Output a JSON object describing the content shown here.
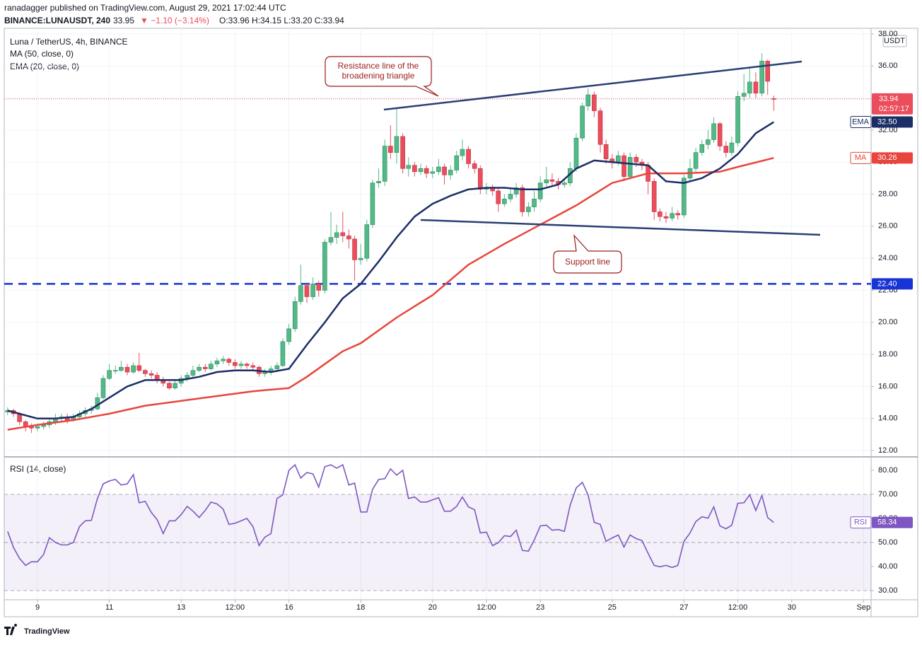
{
  "header": {
    "byline": "ranadagger published on TradingView.com, August 29, 2021 17:02:44 UTC",
    "symbol": "BINANCE:LUNAUSDT, 240",
    "last": "33.95",
    "change": "▼ −1.10 (−3.14%)",
    "ohlc": "O:33.96 H:34.15 L:33.20 C:33.94",
    "footer": "TradingView"
  },
  "chart_data": {
    "type": "candlestick",
    "title": "Luna / TetherUS, 4h, BINANCE",
    "unit": "USDT",
    "up_color": "#53b987",
    "down_color": "#eb4d5c",
    "grid": true,
    "x": [
      8.17,
      8.33,
      8.5,
      8.67,
      8.83,
      9,
      9.17,
      9.33,
      9.5,
      9.67,
      9.83,
      10,
      10.17,
      10.33,
      10.5,
      10.67,
      10.83,
      11,
      11.17,
      11.33,
      11.5,
      11.67,
      11.83,
      12,
      12.17,
      12.33,
      12.5,
      12.67,
      12.83,
      13,
      13.17,
      13.33,
      13.5,
      13.67,
      13.83,
      14,
      14.17,
      14.33,
      14.5,
      14.67,
      14.83,
      15,
      15.17,
      15.33,
      15.5,
      15.67,
      15.83,
      16,
      16.17,
      16.33,
      16.5,
      16.67,
      16.83,
      17,
      17.17,
      17.33,
      17.5,
      17.67,
      17.83,
      18,
      18.17,
      18.33,
      18.5,
      18.67,
      18.83,
      19,
      19.17,
      19.33,
      19.5,
      19.67,
      19.83,
      20,
      20.17,
      20.33,
      20.5,
      20.67,
      20.83,
      21,
      21.17,
      21.33,
      21.5,
      21.67,
      21.83,
      22,
      22.17,
      22.33,
      22.5,
      22.67,
      22.83,
      23,
      23.17,
      23.33,
      23.5,
      23.67,
      23.83,
      24,
      24.17,
      24.33,
      24.5,
      24.67,
      24.83,
      25,
      25.17,
      25.33,
      25.5,
      25.67,
      25.83,
      26,
      26.17,
      26.33,
      26.5,
      26.67,
      26.83,
      27,
      27.17,
      27.33,
      27.5,
      27.67,
      27.83,
      28,
      28.17,
      28.33,
      28.5,
      28.67,
      28.83,
      29,
      29.17,
      29.33,
      29.5
    ],
    "open": [
      14.4,
      14.5,
      14.3,
      13.8,
      13.5,
      13.4,
      13.5,
      13.6,
      13.8,
      14.0,
      14.1,
      13.9,
      14.1,
      14.3,
      14.5,
      14.6,
      15.3,
      16.5,
      17.0,
      17.0,
      17.2,
      16.9,
      17.3,
      17.0,
      16.8,
      16.7,
      16.4,
      16.2,
      15.9,
      16.2,
      16.5,
      16.7,
      17.0,
      17.2,
      17.1,
      17.4,
      17.6,
      17.7,
      17.5,
      17.3,
      17.4,
      17.3,
      17.2,
      16.8,
      16.9,
      17.1,
      17.3,
      18.8,
      19.6,
      21.3,
      22.3,
      21.6,
      22.4,
      22.0,
      25.0,
      25.3,
      25.6,
      25.4,
      25.2,
      23.9,
      24.0,
      26.1,
      28.7,
      28.8,
      31.0,
      30.6,
      31.6,
      29.6,
      29.8,
      29.4,
      29.6,
      29.3,
      29.4,
      29.7,
      29.2,
      29.5,
      30.4,
      30.8,
      29.9,
      29.6,
      28.3,
      28.4,
      28.2,
      27.4,
      27.7,
      28.0,
      28.4,
      26.9,
      27.2,
      27.7,
      28.7,
      28.9,
      28.8,
      28.6,
      28.7,
      29.6,
      31.5,
      33.5,
      34.2,
      33.2,
      31.1,
      30.2,
      30.0,
      30.4,
      29.1,
      30.3,
      30.0,
      29.8,
      28.8,
      26.9,
      26.6,
      26.5,
      26.8,
      26.7,
      29.0,
      29.6,
      30.6,
      31.1,
      31.4,
      32.4,
      31.0,
      30.6,
      31.2,
      34.1,
      34.3,
      35.0,
      34.3,
      36.3,
      33.96
    ],
    "high": [
      14.7,
      14.6,
      14.4,
      13.9,
      13.7,
      13.7,
      13.8,
      14.0,
      14.3,
      14.3,
      14.3,
      14.3,
      14.5,
      14.7,
      14.8,
      15.6,
      16.7,
      17.4,
      17.3,
      17.6,
      17.4,
      17.5,
      18.1,
      17.1,
      17.0,
      16.9,
      16.6,
      16.3,
      16.4,
      16.7,
      16.9,
      17.3,
      17.4,
      17.4,
      17.6,
      17.8,
      17.9,
      17.8,
      17.7,
      17.6,
      17.5,
      17.5,
      17.3,
      17.1,
      17.3,
      17.5,
      19.0,
      19.9,
      21.6,
      23.6,
      22.5,
      22.8,
      22.6,
      25.2,
      26.9,
      26.1,
      26.9,
      25.8,
      25.4,
      24.9,
      26.4,
      28.9,
      29.6,
      31.4,
      32.3,
      33.4,
      31.8,
      30.3,
      30.0,
      29.9,
      29.8,
      29.7,
      30.2,
      29.9,
      29.8,
      30.7,
      31.4,
      31.0,
      30.1,
      29.8,
      28.7,
      28.6,
      28.4,
      28.0,
      28.3,
      28.7,
      28.6,
      27.5,
      28.2,
      29.1,
      29.7,
      29.3,
      29.0,
      29.0,
      30.0,
      31.8,
      33.7,
      34.6,
      34.4,
      33.4,
      31.4,
      30.5,
      30.7,
      30.6,
      30.6,
      30.5,
      30.2,
      30.0,
      29.0,
      27.1,
      26.9,
      27.2,
      27.0,
      29.2,
      30.2,
      30.9,
      31.4,
      32.0,
      32.8,
      32.5,
      31.3,
      31.6,
      34.4,
      35.5,
      35.9,
      35.6,
      36.8,
      36.4,
      34.15
    ],
    "low": [
      14.2,
      14.1,
      13.6,
      13.2,
      13.1,
      13.2,
      13.3,
      13.4,
      13.6,
      13.8,
      13.7,
      13.8,
      13.9,
      14.1,
      14.3,
      14.5,
      15.2,
      16.4,
      16.8,
      16.9,
      16.7,
      16.8,
      16.9,
      16.6,
      16.5,
      16.2,
      16.0,
      15.8,
      15.8,
      16.0,
      16.3,
      16.5,
      16.9,
      16.9,
      17.0,
      17.2,
      17.4,
      17.3,
      17.1,
      17.1,
      17.1,
      17.0,
      16.6,
      16.6,
      16.7,
      16.9,
      17.2,
      18.6,
      19.4,
      21.1,
      21.2,
      21.4,
      21.6,
      21.8,
      24.8,
      24.9,
      25.0,
      24.6,
      22.6,
      23.6,
      23.8,
      25.9,
      28.4,
      28.5,
      30.2,
      29.9,
      29.3,
      29.1,
      29.1,
      29.2,
      29.0,
      29.0,
      29.2,
      28.6,
      28.9,
      29.3,
      30.1,
      29.6,
      29.3,
      28.0,
      28.0,
      27.9,
      26.9,
      27.2,
      27.5,
      27.8,
      26.6,
      26.6,
      26.9,
      27.5,
      28.5,
      28.5,
      28.3,
      28.4,
      28.5,
      29.4,
      31.3,
      33.2,
      32.8,
      30.6,
      29.9,
      29.6,
      29.8,
      28.8,
      28.9,
      29.7,
      29.5,
      28.0,
      26.4,
      26.3,
      26.2,
      26.3,
      26.4,
      26.5,
      28.8,
      29.4,
      30.4,
      30.8,
      31.2,
      30.7,
      30.3,
      30.4,
      31.0,
      33.8,
      34.0,
      34.0,
      34.1,
      34.2,
      33.2
    ],
    "close": [
      14.5,
      14.3,
      13.8,
      13.5,
      13.4,
      13.5,
      13.6,
      13.8,
      14.0,
      14.1,
      13.9,
      14.1,
      14.3,
      14.5,
      14.6,
      15.3,
      16.5,
      17.0,
      17.0,
      17.2,
      16.9,
      17.3,
      17.0,
      16.8,
      16.7,
      16.4,
      16.2,
      15.9,
      16.2,
      16.5,
      16.7,
      17.0,
      17.2,
      17.1,
      17.4,
      17.6,
      17.7,
      17.5,
      17.3,
      17.4,
      17.3,
      17.2,
      16.8,
      16.9,
      17.1,
      17.3,
      18.8,
      19.6,
      21.3,
      22.3,
      21.6,
      22.4,
      22.0,
      25.0,
      25.3,
      25.6,
      25.4,
      25.2,
      23.9,
      24.0,
      26.1,
      28.7,
      28.8,
      31.0,
      30.6,
      31.6,
      29.6,
      29.8,
      29.4,
      29.6,
      29.3,
      29.4,
      29.7,
      29.2,
      29.5,
      30.4,
      30.8,
      29.9,
      29.6,
      28.3,
      28.4,
      28.2,
      27.4,
      27.7,
      28.0,
      28.4,
      26.9,
      27.2,
      27.7,
      28.7,
      28.9,
      28.8,
      28.6,
      28.7,
      29.6,
      31.5,
      33.5,
      34.2,
      33.2,
      31.1,
      30.2,
      30.0,
      30.4,
      29.1,
      30.3,
      30.0,
      29.8,
      28.8,
      26.9,
      26.6,
      26.5,
      26.8,
      26.7,
      29.0,
      29.6,
      30.6,
      31.1,
      31.4,
      32.4,
      31.0,
      30.6,
      31.2,
      34.1,
      34.3,
      35.0,
      34.3,
      36.3,
      35.04,
      33.94
    ],
    "countdown": "02:57:17",
    "series": [
      {
        "name": "MA (50, close, 0)",
        "tag": "MA",
        "tag_label": "30.26",
        "color": "#e8453c",
        "x": [
          8.17,
          9,
          10,
          11,
          12,
          13,
          14,
          15,
          16,
          16.5,
          17,
          17.5,
          18,
          18.5,
          19,
          19.5,
          20,
          21,
          22,
          23,
          24,
          25,
          26,
          27,
          28,
          28.5,
          29.5
        ],
        "values": [
          13.3,
          13.6,
          13.9,
          14.3,
          14.8,
          15.1,
          15.4,
          15.7,
          15.9,
          16.6,
          17.4,
          18.2,
          18.7,
          19.5,
          20.3,
          21.0,
          21.7,
          23.6,
          24.9,
          26.1,
          27.3,
          28.7,
          29.3,
          29.3,
          29.4,
          29.7,
          30.26
        ]
      },
      {
        "name": "EMA (20, close, 0)",
        "tag": "EMA",
        "tag_label": "32.50",
        "color": "#1c2e66",
        "x": [
          8.17,
          8.5,
          9,
          9.5,
          10,
          10.5,
          11,
          11.5,
          12,
          12.5,
          13,
          13.5,
          14,
          14.5,
          15,
          15.5,
          16,
          16.5,
          17,
          17.5,
          18,
          18.5,
          19,
          19.5,
          20,
          20.5,
          21,
          21.5,
          22,
          22.5,
          23,
          23.5,
          24,
          24.5,
          25,
          25.5,
          26,
          26.5,
          27,
          27.5,
          28,
          28.5,
          29,
          29.5
        ],
        "values": [
          14.5,
          14.3,
          14.0,
          14.0,
          14.1,
          14.6,
          15.3,
          16.0,
          16.4,
          16.4,
          16.4,
          16.6,
          16.9,
          17.0,
          17.0,
          16.9,
          17.1,
          18.6,
          20.0,
          21.5,
          22.4,
          23.8,
          25.3,
          26.6,
          27.4,
          27.9,
          28.3,
          28.4,
          28.4,
          28.3,
          28.3,
          28.6,
          29.6,
          30.1,
          30.0,
          29.9,
          29.8,
          28.8,
          28.7,
          29.0,
          29.6,
          30.5,
          31.8,
          32.5
        ]
      }
    ],
    "hline": {
      "value": 22.4,
      "label": "22.40",
      "color": "#1833d6"
    },
    "xlim": [
      8.114,
      32.21
    ],
    "xticks": [
      9,
      11,
      13,
      {
        "value": 14.5,
        "label": "12:00"
      },
      16,
      18,
      20,
      {
        "value": 21.5,
        "label": "12:00"
      },
      23,
      25,
      27,
      {
        "value": 28.5,
        "label": "12:00"
      },
      30,
      {
        "value": 32,
        "label": "Sep"
      }
    ],
    "ylim": [
      11.65,
      38.35
    ],
    "yticks": [
      {
        "value": 12,
        "label": "12.00"
      },
      {
        "value": 14,
        "label": "14.00"
      },
      {
        "value": 16,
        "label": "16.00"
      },
      {
        "value": 18,
        "label": "18.00"
      },
      {
        "value": 20,
        "label": "20.00"
      },
      {
        "value": 22,
        "label": "22.00"
      },
      {
        "value": 24,
        "label": "24.00"
      },
      {
        "value": 26,
        "label": "26.00"
      },
      {
        "value": 28,
        "label": "28.00"
      },
      {
        "value": 30,
        "label": "30.00"
      },
      {
        "value": 32,
        "label": "32.00"
      },
      {
        "value": 34,
        "label": "34.00"
      },
      {
        "value": 36,
        "label": "36.00"
      },
      {
        "value": 38,
        "label": "38.00"
      }
    ],
    "annotations": [
      {
        "lines": [
          "Resistance line of the",
          "broadening triangle"
        ]
      },
      {
        "lines": [
          "Support line"
        ]
      }
    ],
    "rsi": {
      "name": "RSI (14, close)",
      "tag": "RSI",
      "color": "#7e57c2",
      "ylim": [
        26.5,
        85
      ],
      "yticks": [
        {
          "value": 30,
          "label": "30.00"
        },
        {
          "value": 40,
          "label": "40.00"
        },
        {
          "value": 50,
          "label": "50.00"
        },
        {
          "value": 60,
          "label": "60.00"
        },
        {
          "value": 70,
          "label": "70.00"
        },
        {
          "value": 80,
          "label": "80.00"
        }
      ],
      "levels": [
        70,
        50,
        30
      ],
      "values": [
        54.6,
        48,
        43.4,
        40.5,
        42,
        42,
        45,
        52,
        50,
        49,
        49,
        50,
        56.6,
        59,
        59.2,
        68.3,
        74.4,
        75.6,
        76.2,
        73.9,
        74.4,
        78.2,
        66.5,
        67.1,
        62.5,
        59.5,
        53.7,
        59,
        59,
        61.6,
        65,
        63,
        60.4,
        63.3,
        66.8,
        66,
        63.9,
        57.5,
        58,
        59,
        60,
        56.6,
        48.7,
        52.2,
        53.7,
        68.3,
        69.8,
        80,
        82.3,
        76.8,
        79.1,
        78.5,
        73,
        81.5,
        82.3,
        80.9,
        82.3,
        73.9,
        74.7,
        62.7,
        62.7,
        72.1,
        76.2,
        76.5,
        80.6,
        78,
        80,
        68.3,
        68.9,
        66.8,
        66.8,
        67.7,
        68.6,
        63,
        63,
        65,
        68.9,
        64.8,
        63.6,
        54,
        54.3,
        48.7,
        49.9,
        52.8,
        52.5,
        55.1,
        46.7,
        46.4,
        51,
        56.9,
        57.2,
        55.1,
        55.4,
        54.6,
        65.4,
        72.7,
        75,
        69.8,
        58.4,
        57.5,
        50.5,
        51.9,
        53.1,
        48.1,
        53.1,
        51.6,
        50.8,
        45.5,
        40.5,
        39.9,
        40.5,
        39.6,
        40.5,
        50.5,
        54,
        58.7,
        60.7,
        60.1,
        64.8,
        56.9,
        55.7,
        57.2,
        66.3,
        66.5,
        69.8,
        63.3,
        69.5,
        60.4,
        58.34
      ]
    }
  }
}
